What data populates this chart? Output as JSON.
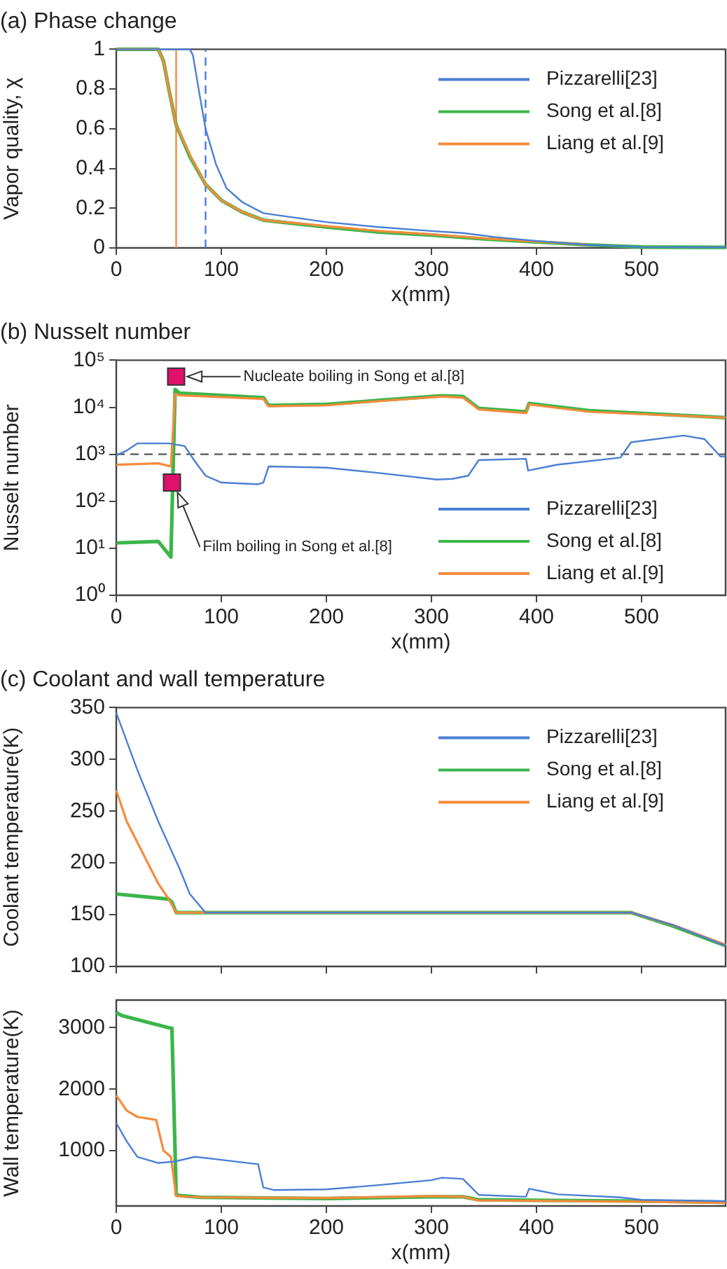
{
  "chart_data": [
    {
      "type": "line",
      "title": "(a) Phase change",
      "xlabel": "x(mm)",
      "ylabel": "Vapor quality, χ",
      "xlim": [
        0,
        580
      ],
      "xticks": [
        0,
        100,
        200,
        300,
        400,
        500
      ],
      "ylim": [
        0,
        1
      ],
      "yticks": [
        0,
        0.2,
        0.4,
        0.6,
        0.8,
        1
      ],
      "legend": "top right",
      "ref_lines": [
        {
          "axis": "x",
          "value": 57,
          "color": "#f58b3c",
          "line_style": "solid"
        },
        {
          "axis": "x",
          "value": 85,
          "color": "#4a7fd4",
          "line_style": "dashed"
        }
      ],
      "series": [
        {
          "name": "Pizzarelli[23]",
          "color": "#4a7fd4",
          "x": [
            0,
            70,
            73,
            80,
            85,
            95,
            105,
            120,
            140,
            200,
            250,
            300,
            330,
            360,
            400,
            450,
            500,
            580
          ],
          "values": [
            1,
            1,
            0.97,
            0.75,
            0.6,
            0.42,
            0.3,
            0.23,
            0.175,
            0.13,
            0.105,
            0.085,
            0.075,
            0.055,
            0.035,
            0.015,
            0.005,
            0.003
          ]
        },
        {
          "name": "Song et al.[8]",
          "color": "#3cb64a",
          "x": [
            0,
            40,
            45,
            50,
            57,
            70,
            85,
            100,
            120,
            140,
            200,
            250,
            300,
            350,
            400,
            450,
            500,
            580
          ],
          "values": [
            1,
            1,
            0.94,
            0.8,
            0.62,
            0.46,
            0.32,
            0.24,
            0.18,
            0.14,
            0.105,
            0.08,
            0.065,
            0.045,
            0.03,
            0.015,
            0.005,
            0.003
          ]
        },
        {
          "name": "Liang et al.[9]",
          "color": "#f58b3c",
          "x": [
            0,
            40,
            45,
            50,
            57,
            70,
            85,
            100,
            120,
            140,
            200,
            250,
            300,
            350,
            400,
            450
          ],
          "values": [
            1,
            1,
            0.94,
            0.8,
            0.62,
            0.47,
            0.32,
            0.24,
            0.18,
            0.14,
            0.11,
            0.085,
            0.068,
            0.048,
            0.032,
            0.016
          ]
        }
      ]
    },
    {
      "type": "line",
      "title": "(b) Nusselt number",
      "xlabel": "x(mm)",
      "ylabel": "Nusselt number",
      "log": "y",
      "xlim": [
        0,
        580
      ],
      "xticks": [
        0,
        100,
        200,
        300,
        400,
        500
      ],
      "ylim": [
        1,
        100000
      ],
      "yticks": [
        {
          "value": 1,
          "label": "10⁰"
        },
        {
          "value": 10,
          "label": "10¹"
        },
        {
          "value": 100,
          "label": "10²"
        },
        {
          "value": 1000,
          "label": "10³"
        },
        {
          "value": 10000,
          "label": "10⁴"
        },
        {
          "value": 100000,
          "label": "10⁵"
        }
      ],
      "legend": "bottom right",
      "ref_lines": [
        {
          "axis": "y",
          "value": 1000,
          "color": "#555555",
          "line_style": "dashed"
        }
      ],
      "annotations": [
        {
          "text": "Nucleate boiling in Song et al.[8]",
          "x": 57,
          "y": 45000
        },
        {
          "text": "Film boiling in Song et al.[8]",
          "x": 53,
          "y": 250
        }
      ],
      "series": [
        {
          "name": "Pizzarelli[23]",
          "color": "#4a7fd4",
          "x": [
            0,
            10,
            20,
            50,
            65,
            75,
            85,
            100,
            135,
            140,
            145,
            200,
            250,
            305,
            320,
            335,
            345,
            390,
            392,
            420,
            480,
            490,
            540,
            560,
            575,
            580
          ],
          "values": [
            950,
            1200,
            1700,
            1700,
            1500,
            700,
            350,
            250,
            230,
            250,
            550,
            520,
            400,
            290,
            300,
            350,
            750,
            800,
            450,
            600,
            850,
            1800,
            2500,
            2100,
            900,
            900
          ]
        },
        {
          "name": "Song et al.[8]",
          "color": "#3cb64a",
          "x": [
            0,
            40,
            52,
            56,
            60,
            140,
            145,
            200,
            250,
            310,
            330,
            345,
            390,
            393,
            450,
            580
          ],
          "values": [
            13,
            14,
            6.5,
            24000,
            20000,
            16000,
            11000,
            11500,
            14000,
            17500,
            17000,
            9500,
            8000,
            12000,
            8500,
            6000
          ]
        },
        {
          "name": "Liang et al.[9]",
          "color": "#f58b3c",
          "x": [
            0,
            40,
            52,
            56,
            60,
            140,
            145,
            200,
            250,
            310,
            330,
            345,
            390,
            393,
            450,
            580
          ],
          "values": [
            600,
            640,
            550,
            19000,
            18000,
            15000,
            10500,
            11000,
            13500,
            17000,
            16000,
            9000,
            7500,
            11500,
            8000,
            6000
          ]
        }
      ]
    },
    {
      "type": "line",
      "title": "(c) Coolant and wall temperature",
      "ylabel": "Coolant temperature(K)",
      "tick_labels": "y",
      "xlim": [
        0,
        580
      ],
      "xticks": [
        0,
        100,
        200,
        300,
        400,
        500
      ],
      "ylim": [
        100,
        350
      ],
      "yticks": [
        100,
        150,
        200,
        250,
        300,
        350
      ],
      "legend": "top right",
      "series": [
        {
          "name": "Pizzarelli[23]",
          "color": "#4a7fd4",
          "x": [
            0,
            20,
            40,
            60,
            70,
            85,
            490,
            530,
            580
          ],
          "values": [
            345,
            290,
            240,
            195,
            170,
            152,
            152,
            140,
            120
          ]
        },
        {
          "name": "Song et al.[8]",
          "color": "#3cb64a",
          "x": [
            0,
            50,
            53,
            57,
            490,
            530,
            580
          ],
          "values": [
            170,
            165,
            162,
            152,
            152,
            139,
            120
          ]
        },
        {
          "name": "Liang et al.[9]",
          "color": "#f58b3c",
          "x": [
            0,
            10,
            30,
            40,
            50,
            57,
            490,
            530,
            580
          ],
          "values": [
            270,
            240,
            200,
            180,
            165,
            152,
            152,
            140,
            121
          ]
        }
      ]
    },
    {
      "type": "line",
      "xlabel": "x(mm)",
      "ylabel": "Wall temperature(K)",
      "xlim": [
        0,
        580
      ],
      "xticks": [
        0,
        100,
        200,
        300,
        400,
        500
      ],
      "ylim": [
        100,
        3450
      ],
      "yticks": [
        1000,
        2000,
        3000
      ],
      "series": [
        {
          "color": "#4a7fd4",
          "x": [
            0,
            10,
            20,
            40,
            55,
            75,
            100,
            135,
            140,
            150,
            200,
            250,
            300,
            310,
            330,
            345,
            390,
            393,
            420,
            480,
            500,
            580
          ],
          "values": [
            1450,
            1150,
            900,
            800,
            820,
            900,
            850,
            780,
            400,
            360,
            370,
            440,
            520,
            560,
            540,
            280,
            250,
            380,
            290,
            240,
            200,
            180
          ]
        },
        {
          "color": "#3cb64a",
          "x": [
            0,
            5,
            50,
            53,
            57,
            60,
            80,
            200,
            300,
            330,
            345,
            500,
            580
          ],
          "values": [
            3250,
            3200,
            3000,
            2990,
            290,
            270,
            240,
            220,
            250,
            250,
            200,
            180,
            160
          ]
        },
        {
          "color": "#f58b3c",
          "x": [
            0,
            10,
            20,
            38,
            45,
            52,
            57,
            80,
            200,
            300,
            330,
            345,
            500,
            580
          ],
          "values": [
            1900,
            1650,
            1550,
            1500,
            1000,
            900,
            260,
            240,
            230,
            260,
            250,
            190,
            170,
            150
          ]
        }
      ]
    }
  ]
}
